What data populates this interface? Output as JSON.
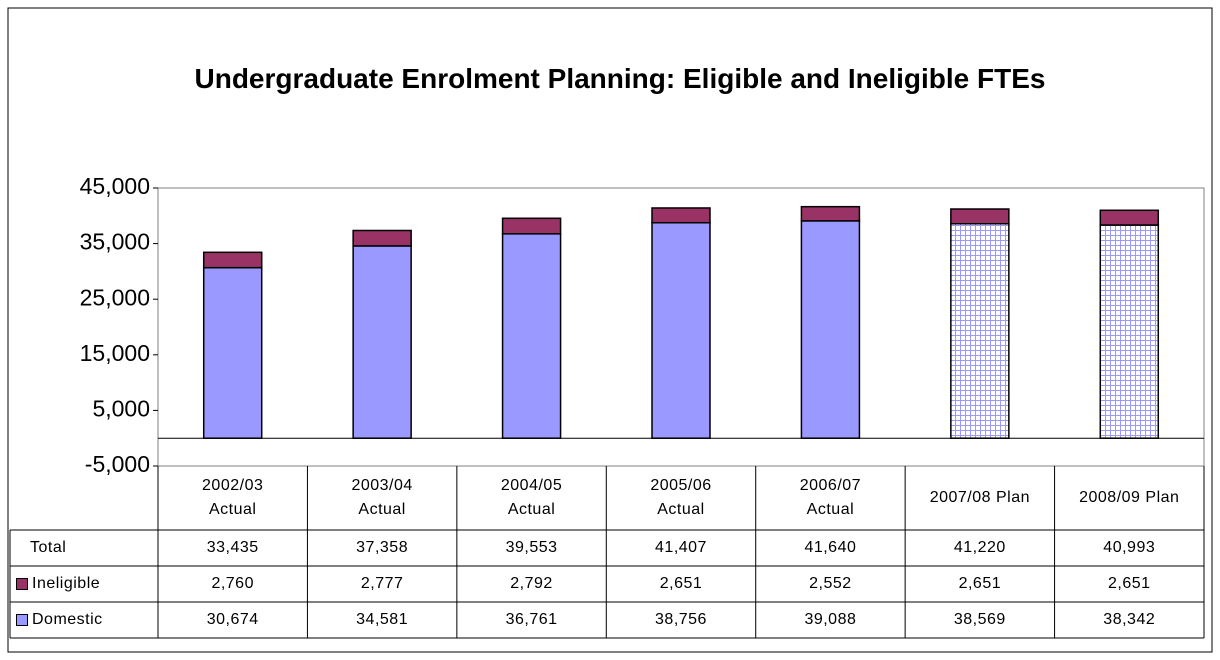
{
  "chart_data": {
    "type": "stacked_bar",
    "title": "Undergraduate Enrolment Planning: Eligible and Ineligible FTEs",
    "categories": [
      "2002/03\nActual",
      "2003/04\nActual",
      "2004/05\nActual",
      "2005/06\nActual",
      "2006/07\nActual",
      "2007/08 Plan",
      "2008/09 Plan"
    ],
    "series": [
      {
        "name": "Domestic",
        "color": "#9999ff",
        "pattern": [
          false,
          false,
          false,
          false,
          false,
          true,
          true
        ],
        "values": [
          30674,
          34581,
          36761,
          38756,
          39088,
          38569,
          38342
        ],
        "value_labels": [
          "30,674",
          "34,581",
          "36,761",
          "38,756",
          "39,088",
          "38,569",
          "38,342"
        ]
      },
      {
        "name": "Ineligible",
        "color": "#993366",
        "values": [
          2760,
          2777,
          2792,
          2651,
          2552,
          2651,
          2651
        ],
        "value_labels": [
          "2,760",
          "2,777",
          "2,792",
          "2,651",
          "2,552",
          "2,651",
          "2,651"
        ]
      }
    ],
    "total": {
      "name": "Total",
      "values": [
        33435,
        37358,
        39553,
        41407,
        41640,
        41220,
        40993
      ],
      "value_labels": [
        "33,435",
        "37,358",
        "39,553",
        "41,407",
        "41,640",
        "41,220",
        "40,993"
      ]
    },
    "ylim": [
      -5000,
      45000
    ],
    "yticks": [
      {
        "value": -5000,
        "label": "-5,000"
      },
      {
        "value": 5000,
        "label": "5,000"
      },
      {
        "value": 15000,
        "label": "15,000"
      },
      {
        "value": 25000,
        "label": "25,000"
      },
      {
        "value": 35000,
        "label": "35,000"
      },
      {
        "value": 45000,
        "label": "45,000"
      }
    ],
    "grid": false
  }
}
